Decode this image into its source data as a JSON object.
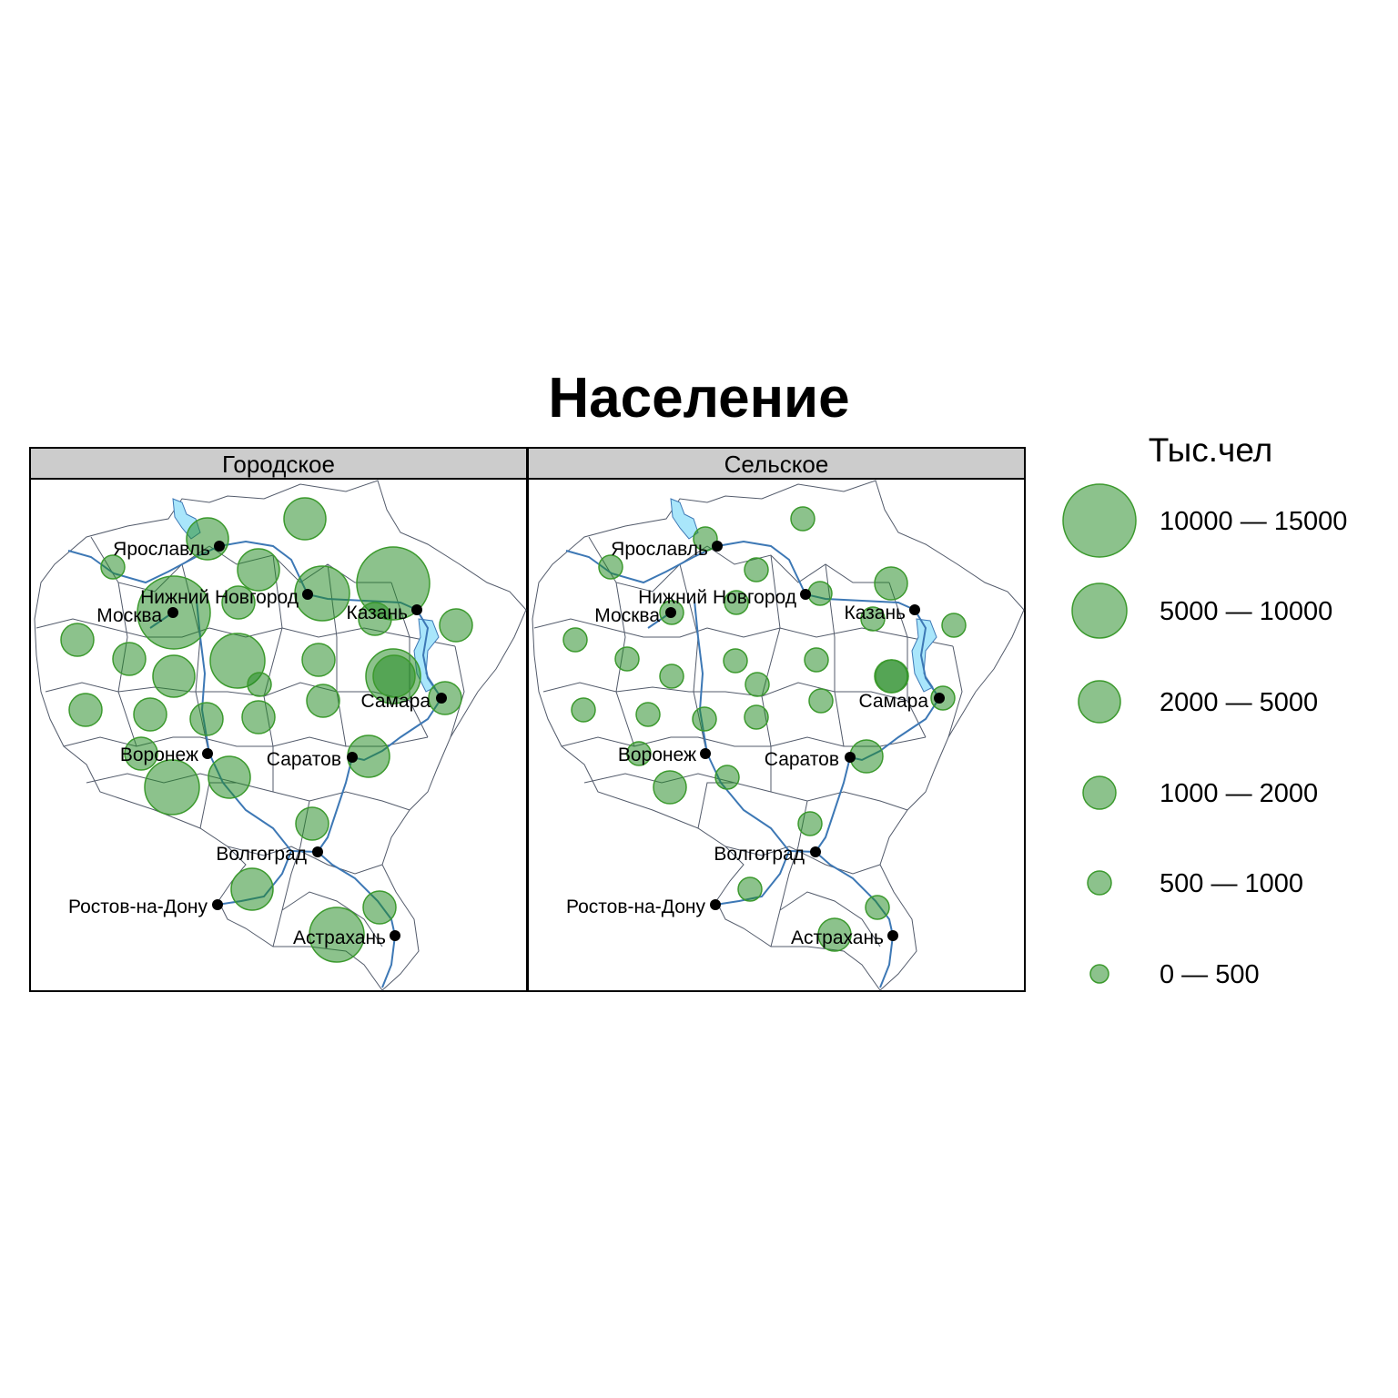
{
  "title": "Население",
  "panels": [
    {
      "id": "urban",
      "title": "Городское",
      "bubble_classes": [
        5,
        3,
        3,
        3,
        1,
        2,
        2,
        4,
        5,
        2,
        2,
        2,
        4,
        3,
        2,
        4,
        2,
        2,
        2,
        2,
        2,
        2,
        3,
        2,
        3,
        4,
        2,
        3,
        2,
        4,
        3,
        1
      ]
    },
    {
      "id": "rural",
      "title": "Сельское",
      "bubble_classes": [
        1,
        1,
        1,
        1,
        1,
        1,
        1,
        1,
        2,
        1,
        1,
        1,
        1,
        1,
        1,
        2,
        1,
        1,
        1,
        1,
        1,
        1,
        2,
        1,
        1,
        2,
        1,
        1,
        1,
        2,
        2,
        1
      ]
    }
  ],
  "cities": [
    {
      "name": "Ярославль"
    },
    {
      "name": "Нижний Новгород"
    },
    {
      "name": "Москва"
    },
    {
      "name": "Казань"
    },
    {
      "name": "Самара"
    },
    {
      "name": "Воронеж"
    },
    {
      "name": "Саратов"
    },
    {
      "name": "Волгоград"
    },
    {
      "name": "Ростов-на-Дону"
    },
    {
      "name": "Астрахань"
    }
  ],
  "legend": {
    "title": "Тыс.чел",
    "classes": [
      {
        "label": "10000  —  15000",
        "range": [
          10000,
          15000
        ]
      },
      {
        "label": "5000  —  10000",
        "range": [
          5000,
          10000
        ]
      },
      {
        "label": "2000  —  5000",
        "range": [
          2000,
          5000
        ]
      },
      {
        "label": "1000  —  2000",
        "range": [
          1000,
          2000
        ]
      },
      {
        "label": "500  —  1000",
        "range": [
          500,
          1000
        ]
      },
      {
        "label": "0  —  500",
        "range": [
          0,
          500
        ]
      }
    ]
  },
  "colors": {
    "bubble": "#228B22",
    "river": "#3d78b5",
    "lake": "#a9e6fb",
    "strip": "#cccccc",
    "border": "#535b6b"
  }
}
